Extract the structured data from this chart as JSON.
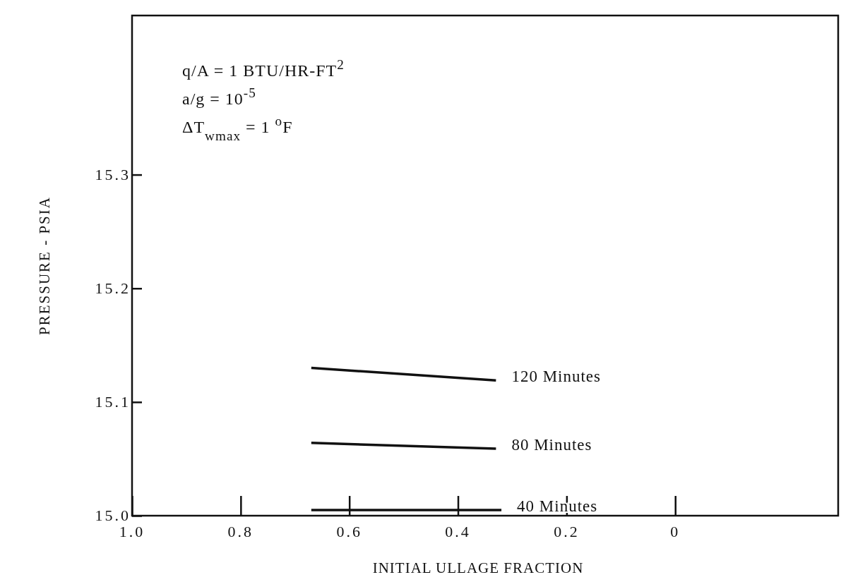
{
  "chart_data": {
    "type": "line",
    "xlabel": "INITIAL ULLAGE FRACTION",
    "ylabel": "PRESSURE - PSIA",
    "xlim": [
      1.0,
      -0.3
    ],
    "xticks": [
      {
        "value": 1.0,
        "label": "1.0"
      },
      0.8,
      0.6,
      0.4,
      0.2,
      0
    ],
    "ylim": [
      15.0,
      15.44
    ],
    "yticks": [
      {
        "value": 15.0,
        "label": "15.0"
      },
      15.1,
      15.2,
      15.3
    ],
    "grid": false,
    "marker": "none",
    "line_style": "solid",
    "annotations": [
      "q/A = 1 BTU/HR-FT$^{2}$",
      "a/g = 10$^{-5}$",
      "ΔT$_{wmax}$ = 1 $^{o}$F"
    ],
    "series": [
      {
        "name": "120 Minutes",
        "color": "#111111",
        "x": [
          0.67,
          0.33
        ],
        "values": [
          15.13,
          15.119
        ]
      },
      {
        "name": "80 Minutes",
        "color": "#111111",
        "x": [
          0.67,
          0.33
        ],
        "values": [
          15.064,
          15.059
        ]
      },
      {
        "name": "40 Minutes",
        "color": "#111111",
        "x": [
          0.67,
          0.32
        ],
        "values": [
          15.005,
          15.005
        ]
      }
    ]
  }
}
